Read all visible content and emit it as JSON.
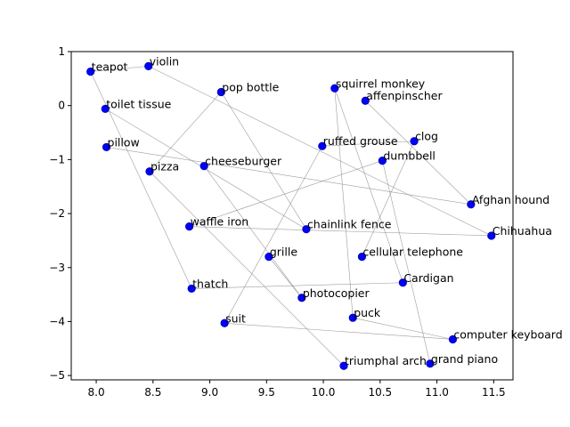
{
  "chart_data": {
    "type": "scatter",
    "title": "",
    "xlabel": "",
    "ylabel": "",
    "xlim": [
      7.78,
      11.67
    ],
    "ylim": [
      -5.08,
      1.0
    ],
    "xticks": [
      8.0,
      8.5,
      9.0,
      9.5,
      10.0,
      10.5,
      11.0,
      11.5
    ],
    "xtick_labels": [
      "8.0",
      "8.5",
      "9.0",
      "9.5",
      "10.0",
      "10.5",
      "11.0",
      "11.5"
    ],
    "yticks": [
      1,
      0,
      -1,
      -2,
      -3,
      -4,
      -5
    ],
    "ytick_labels": [
      "1",
      "0",
      "−1",
      "−2",
      "−3",
      "−4",
      "−5"
    ],
    "grid": false,
    "marker_color": "#0000ff",
    "edge_color": "#808080",
    "points": [
      {
        "label": "teapot",
        "x": 7.95,
        "y": 0.63
      },
      {
        "label": "violin",
        "x": 8.46,
        "y": 0.73
      },
      {
        "label": "pop bottle",
        "x": 9.1,
        "y": 0.25
      },
      {
        "label": "toilet tissue",
        "x": 8.08,
        "y": -0.06
      },
      {
        "label": "squirrel monkey",
        "x": 10.1,
        "y": 0.32
      },
      {
        "label": "affenpinscher",
        "x": 10.37,
        "y": 0.09
      },
      {
        "label": "clog",
        "x": 10.8,
        "y": -0.66
      },
      {
        "label": "pillow",
        "x": 8.09,
        "y": -0.77
      },
      {
        "label": "ruffed grouse",
        "x": 9.99,
        "y": -0.75
      },
      {
        "label": "dumbbell",
        "x": 10.52,
        "y": -1.02
      },
      {
        "label": "cheeseburger",
        "x": 8.95,
        "y": -1.12
      },
      {
        "label": "pizza",
        "x": 8.47,
        "y": -1.22
      },
      {
        "label": "Afghan hound",
        "x": 11.3,
        "y": -1.83
      },
      {
        "label": "waffle iron",
        "x": 8.82,
        "y": -2.24
      },
      {
        "label": "chainlink fence",
        "x": 9.85,
        "y": -2.29
      },
      {
        "label": "Chihuahua",
        "x": 11.48,
        "y": -2.41
      },
      {
        "label": "grille",
        "x": 9.52,
        "y": -2.8
      },
      {
        "label": "cellular telephone",
        "x": 10.34,
        "y": -2.8
      },
      {
        "label": "Cardigan",
        "x": 10.7,
        "y": -3.28
      },
      {
        "label": "thatch",
        "x": 8.84,
        "y": -3.39
      },
      {
        "label": "photocopier",
        "x": 9.81,
        "y": -3.56
      },
      {
        "label": "puck",
        "x": 10.26,
        "y": -3.93
      },
      {
        "label": "suit",
        "x": 9.13,
        "y": -4.03
      },
      {
        "label": "computer keyboard",
        "x": 11.14,
        "y": -4.33
      },
      {
        "label": "grand piano",
        "x": 10.94,
        "y": -4.78
      },
      {
        "label": "triumphal arch",
        "x": 10.18,
        "y": -4.82
      }
    ],
    "edges": [
      [
        "teapot",
        "violin"
      ],
      [
        "violin",
        "Chihuahua"
      ],
      [
        "pop bottle",
        "chainlink fence"
      ],
      [
        "pop bottle",
        "pizza"
      ],
      [
        "toilet tissue",
        "chainlink fence"
      ],
      [
        "teapot",
        "thatch"
      ],
      [
        "squirrel monkey",
        "puck"
      ],
      [
        "squirrel monkey",
        "Cardigan"
      ],
      [
        "affenpinscher",
        "Afghan hound"
      ],
      [
        "clog",
        "ruffed grouse"
      ],
      [
        "ruffed grouse",
        "suit"
      ],
      [
        "clog",
        "cellular telephone"
      ],
      [
        "dumbbell",
        "grand piano"
      ],
      [
        "dumbbell",
        "waffle iron"
      ],
      [
        "pillow",
        "Afghan hound"
      ],
      [
        "pizza",
        "triumphal arch"
      ],
      [
        "cheeseburger",
        "photocopier"
      ],
      [
        "waffle iron",
        "Chihuahua"
      ],
      [
        "grille",
        "photocopier"
      ],
      [
        "thatch",
        "Cardigan"
      ],
      [
        "suit",
        "computer keyboard"
      ],
      [
        "puck",
        "computer keyboard"
      ]
    ]
  }
}
